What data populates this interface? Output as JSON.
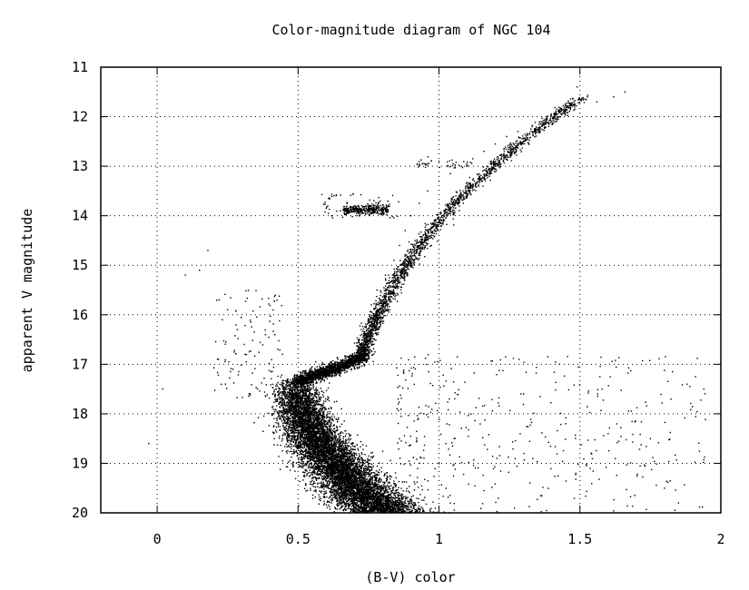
{
  "chart_data": {
    "type": "scatter",
    "title": "Color-magnitude diagram of NGC 104",
    "xlabel": "(B-V) color",
    "ylabel": "apparent V magnitude",
    "xlim": [
      -0.2,
      2
    ],
    "ylim": [
      20,
      11
    ],
    "y_inverted": true,
    "grid": true,
    "x_ticks": [
      {
        "value": 0,
        "label": "0"
      },
      {
        "value": 0.5,
        "label": "0.5"
      },
      {
        "value": 1,
        "label": "1"
      },
      {
        "value": 1.5,
        "label": "1.5"
      },
      {
        "value": 2,
        "label": "2"
      }
    ],
    "y_ticks": [
      {
        "value": 11,
        "label": "11"
      },
      {
        "value": 12,
        "label": "12"
      },
      {
        "value": 13,
        "label": "13"
      },
      {
        "value": 14,
        "label": "14"
      },
      {
        "value": 15,
        "label": "15"
      },
      {
        "value": 16,
        "label": "16"
      },
      {
        "value": 17,
        "label": "17"
      },
      {
        "value": 18,
        "label": "18"
      },
      {
        "value": 19,
        "label": "19"
      },
      {
        "value": 20,
        "label": "20"
      }
    ],
    "marker_color": "#000000",
    "points_sample": [
      [
        1.66,
        11.5
      ],
      [
        1.62,
        11.6
      ],
      [
        1.56,
        11.7
      ],
      [
        1.49,
        11.4
      ],
      [
        1.52,
        11.65
      ],
      [
        1.45,
        11.9
      ],
      [
        1.42,
        12.0
      ],
      [
        1.38,
        12.1
      ],
      [
        1.33,
        12.2
      ],
      [
        1.28,
        12.3
      ],
      [
        1.24,
        12.4
      ],
      [
        1.2,
        12.55
      ],
      [
        1.16,
        12.7
      ],
      [
        1.12,
        12.85
      ],
      [
        1.08,
        13.0
      ],
      [
        1.04,
        13.15
      ],
      [
        1.0,
        13.3
      ],
      [
        0.96,
        13.5
      ],
      [
        0.93,
        13.75
      ],
      [
        0.9,
        14.0
      ],
      [
        0.88,
        14.3
      ],
      [
        0.86,
        14.6
      ],
      [
        0.84,
        14.9
      ],
      [
        0.81,
        15.2
      ],
      [
        0.78,
        15.5
      ],
      [
        0.76,
        15.8
      ],
      [
        0.75,
        16.1
      ],
      [
        0.74,
        16.4
      ],
      [
        0.73,
        16.7
      ],
      [
        0.7,
        16.9
      ],
      [
        0.62,
        17.0
      ],
      [
        0.55,
        17.05
      ],
      [
        0.5,
        17.3
      ],
      [
        0.48,
        17.7
      ],
      [
        0.49,
        18.1
      ],
      [
        0.52,
        18.5
      ],
      [
        0.57,
        18.9
      ],
      [
        0.63,
        19.2
      ],
      [
        0.7,
        19.5
      ],
      [
        0.78,
        19.8
      ],
      [
        0.6,
        13.85
      ],
      [
        0.65,
        13.9
      ],
      [
        0.7,
        13.88
      ],
      [
        0.75,
        13.85
      ],
      [
        0.8,
        13.9
      ],
      [
        0.95,
        12.95
      ],
      [
        1.0,
        12.9
      ],
      [
        1.05,
        12.95
      ],
      [
        0.1,
        15.2
      ],
      [
        0.15,
        15.1
      ],
      [
        0.18,
        14.7
      ],
      [
        0.22,
        15.7
      ],
      [
        0.25,
        15.9
      ],
      [
        1.3,
        17.6
      ],
      [
        1.45,
        18.2
      ],
      [
        1.6,
        18.4
      ],
      [
        1.75,
        18.5
      ],
      [
        1.88,
        17.4
      ],
      [
        -0.03,
        18.6
      ],
      [
        0.02,
        17.5
      ],
      [
        1.85,
        19.8
      ]
    ]
  }
}
